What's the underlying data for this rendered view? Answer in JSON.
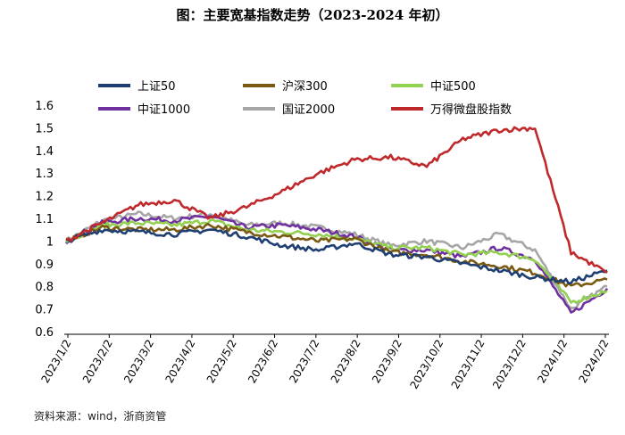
{
  "title": "图：主要宽基指数走势（2023-2024 年初）",
  "source": "资料来源：wind，浙商资管",
  "chart_data": {
    "type": "line",
    "ylim": [
      0.6,
      1.6
    ],
    "yticks": [
      0.6,
      0.7,
      0.8,
      0.9,
      1,
      1.1,
      1.2,
      1.3,
      1.4,
      1.5,
      1.6
    ],
    "x_tick_labels": [
      "2023/1/2",
      "2023/2/2",
      "2023/3/2",
      "2023/4/2",
      "2023/5/2",
      "2023/6/2",
      "2023/7/2",
      "2023/8/2",
      "2023/9/2",
      "2023/10/2",
      "2023/11/2",
      "2023/12/2",
      "2024/1/2",
      "2024/2/2"
    ],
    "grid": false,
    "legend_position": "top",
    "series": [
      {
        "name": "上证50",
        "color": "#1f3f73",
        "values": [
          1.0,
          1.05,
          1.04,
          1.03,
          1.05,
          1.02,
          0.98,
          0.96,
          0.99,
          0.94,
          0.93,
          0.9,
          0.87,
          0.84,
          0.82,
          0.87
        ]
      },
      {
        "name": "沪深300",
        "color": "#7a5a12",
        "values": [
          1.0,
          1.06,
          1.05,
          1.05,
          1.07,
          1.04,
          1.02,
          1.0,
          1.01,
          0.95,
          0.94,
          0.91,
          0.89,
          0.86,
          0.8,
          0.83
        ]
      },
      {
        "name": "中证500",
        "color": "#92d050",
        "values": [
          1.0,
          1.07,
          1.08,
          1.07,
          1.09,
          1.05,
          1.04,
          1.03,
          1.01,
          0.97,
          0.97,
          0.94,
          0.95,
          0.92,
          0.73,
          0.78
        ]
      },
      {
        "name": "中证1000",
        "color": "#7030a0",
        "values": [
          1.0,
          1.08,
          1.1,
          1.09,
          1.11,
          1.06,
          1.07,
          1.05,
          1.02,
          0.96,
          0.96,
          0.93,
          0.97,
          0.92,
          0.68,
          0.79
        ]
      },
      {
        "name": "国证2000",
        "color": "#a6a6a6",
        "values": [
          1.0,
          1.09,
          1.12,
          1.1,
          1.12,
          1.07,
          1.08,
          1.06,
          1.03,
          0.98,
          1.0,
          0.97,
          1.03,
          0.96,
          0.7,
          0.8
        ]
      },
      {
        "name": "万得微盘股指数",
        "color": "#c0292b",
        "values": [
          1.0,
          1.08,
          1.16,
          1.18,
          1.1,
          1.15,
          1.22,
          1.3,
          1.36,
          1.37,
          1.33,
          1.45,
          1.49,
          1.5,
          0.95,
          0.86
        ]
      }
    ]
  }
}
